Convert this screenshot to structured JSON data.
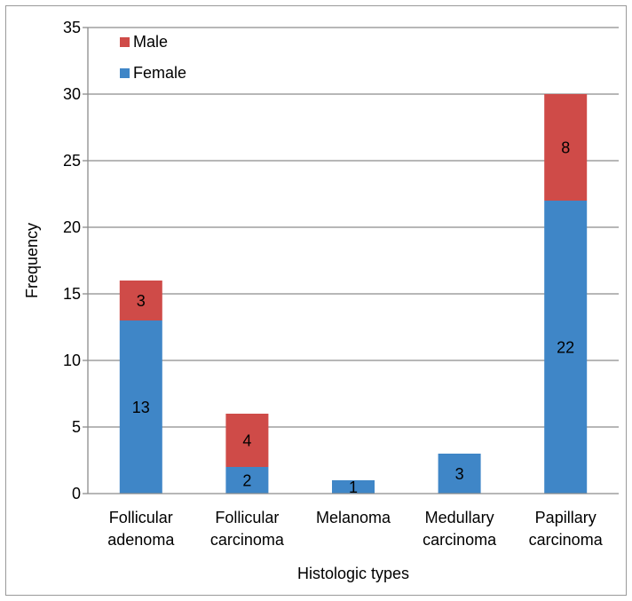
{
  "chart_data": {
    "type": "bar",
    "stacked": true,
    "title": "",
    "xlabel": "Histologic types",
    "ylabel": "Frequency",
    "ylim": [
      0,
      35
    ],
    "yticks": [
      0,
      5,
      10,
      15,
      20,
      25,
      30,
      35
    ],
    "grid": true,
    "legend_position": "top-left",
    "categories": [
      [
        "Follicular",
        "adenoma"
      ],
      [
        "Follicular",
        "carcinoma"
      ],
      [
        "Melanoma"
      ],
      [
        "Medullary",
        "carcinoma"
      ],
      [
        "Papillary",
        "carcinoma"
      ]
    ],
    "series": [
      {
        "name": "Female",
        "color": "#3f86c7",
        "values": [
          13,
          2,
          1,
          3,
          22
        ]
      },
      {
        "name": "Male",
        "color": "#cf4b48",
        "values": [
          3,
          4,
          0,
          0,
          8
        ]
      }
    ],
    "legend_order": [
      "Male",
      "Female"
    ]
  }
}
